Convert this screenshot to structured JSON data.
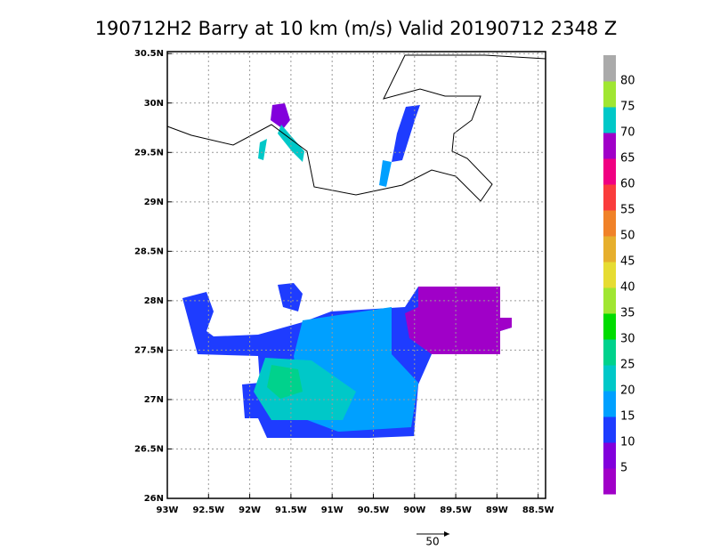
{
  "title": "190712H2 Barry at 10 km (m/s) Valid 20190712 2348 Z",
  "map": {
    "xlim": [
      -93,
      -88.41
    ],
    "ylim": [
      26,
      30.52
    ],
    "xticks": [
      {
        "value": -93,
        "label": "93W"
      },
      {
        "value": -92.5,
        "label": "92.5W"
      },
      {
        "value": -92,
        "label": "92W"
      },
      {
        "value": -91.5,
        "label": "91.5W"
      },
      {
        "value": -91,
        "label": "91W"
      },
      {
        "value": -90.5,
        "label": "90.5W"
      },
      {
        "value": -90,
        "label": "90W"
      },
      {
        "value": -89.5,
        "label": "89.5W"
      },
      {
        "value": -89,
        "label": "89W"
      },
      {
        "value": -88.5,
        "label": "88.5W"
      }
    ],
    "yticks": [
      {
        "value": 26,
        "label": "26N"
      },
      {
        "value": 26.5,
        "label": "26.5N"
      },
      {
        "value": 27,
        "label": "27N"
      },
      {
        "value": 27.5,
        "label": "27.5N"
      },
      {
        "value": 28,
        "label": "28N"
      },
      {
        "value": 28.5,
        "label": "28.5N"
      },
      {
        "value": 29,
        "label": "29N"
      },
      {
        "value": 29.5,
        "label": "29.5N"
      },
      {
        "value": 30,
        "label": "30N"
      },
      {
        "value": 30.5,
        "label": "30.5N"
      }
    ],
    "grid": true
  },
  "colorbar": {
    "labels": [
      5,
      10,
      15,
      20,
      25,
      30,
      35,
      40,
      45,
      50,
      55,
      60,
      65,
      70,
      75,
      80
    ],
    "colors": [
      "#a000c8",
      "#8200dc",
      "#1e3cff",
      "#00a0ff",
      "#00c8c8",
      "#00d28c",
      "#00dc00",
      "#a0e632",
      "#e6dc32",
      "#e6af2d",
      "#f08228",
      "#fa3c3c",
      "#f00082",
      "#a000c8",
      "#00c8c8",
      "#a0e632",
      "#aaaaaa"
    ]
  },
  "reference_vector": 50
}
